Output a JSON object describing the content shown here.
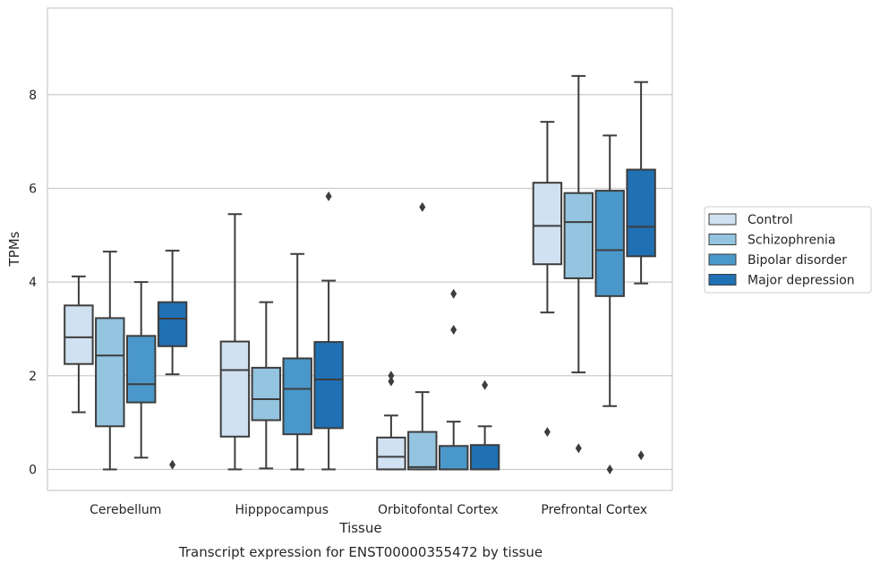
{
  "chart_data": {
    "type": "box",
    "title": "",
    "caption": "Transcript expression for ENST00000355472 by tissue",
    "xlabel": "Tissue",
    "ylabel": "TPMs",
    "ylim": [
      -0.45,
      9.85
    ],
    "yticks": [
      0,
      2,
      4,
      6,
      8
    ],
    "grid": true,
    "legend_position": "right",
    "categories": [
      "Cerebellum",
      "Hipppocampus",
      "Orbitofontal Cortex",
      "Prefrontal Cortex"
    ],
    "series": [
      {
        "name": "Control",
        "color": "#d0e1f1",
        "boxes": [
          {
            "whislo": 1.22,
            "q1": 2.25,
            "med": 2.82,
            "q3": 3.5,
            "whishi": 4.12,
            "fliers": []
          },
          {
            "whislo": 0.0,
            "q1": 0.7,
            "med": 2.12,
            "q3": 2.73,
            "whishi": 5.45,
            "fliers": []
          },
          {
            "whislo": 0.0,
            "q1": 0.0,
            "med": 0.27,
            "q3": 0.68,
            "whishi": 1.15,
            "fliers": [
              1.88,
              2.0
            ]
          },
          {
            "whislo": 3.35,
            "q1": 4.38,
            "med": 5.2,
            "q3": 6.12,
            "whishi": 7.42,
            "fliers": [
              0.8
            ]
          }
        ]
      },
      {
        "name": "Schizophrenia",
        "color": "#94c4df",
        "boxes": [
          {
            "whislo": 0.0,
            "q1": 0.92,
            "med": 2.43,
            "q3": 3.23,
            "whishi": 4.65,
            "fliers": []
          },
          {
            "whislo": 0.02,
            "q1": 1.05,
            "med": 1.5,
            "q3": 2.17,
            "whishi": 3.57,
            "fliers": []
          },
          {
            "whislo": 0.0,
            "q1": 0.0,
            "med": 0.05,
            "q3": 0.8,
            "whishi": 1.65,
            "fliers": [
              5.6
            ]
          },
          {
            "whislo": 2.07,
            "q1": 4.08,
            "med": 5.28,
            "q3": 5.9,
            "whishi": 8.4,
            "fliers": [
              0.45
            ]
          }
        ]
      },
      {
        "name": "Bipolar disorder",
        "color": "#4a98c9",
        "boxes": [
          {
            "whislo": 0.25,
            "q1": 1.43,
            "med": 1.82,
            "q3": 2.85,
            "whishi": 4.0,
            "fliers": []
          },
          {
            "whislo": 0.0,
            "q1": 0.75,
            "med": 1.72,
            "q3": 2.37,
            "whishi": 4.6,
            "fliers": []
          },
          {
            "whislo": 0.0,
            "q1": 0.0,
            "med": 0.0,
            "q3": 0.5,
            "whishi": 1.02,
            "fliers": [
              2.98,
              3.75
            ]
          },
          {
            "whislo": 1.35,
            "q1": 3.7,
            "med": 4.68,
            "q3": 5.95,
            "whishi": 7.13,
            "fliers": [
              0.0
            ]
          }
        ]
      },
      {
        "name": "Major depression",
        "color": "#2070b4",
        "boxes": [
          {
            "whislo": 2.03,
            "q1": 2.63,
            "med": 3.22,
            "q3": 3.57,
            "whishi": 4.67,
            "fliers": [
              0.1
            ]
          },
          {
            "whislo": 0.0,
            "q1": 0.88,
            "med": 1.92,
            "q3": 2.72,
            "whishi": 4.03,
            "fliers": [
              5.83
            ]
          },
          {
            "whislo": 0.0,
            "q1": 0.0,
            "med": 0.0,
            "q3": 0.52,
            "whishi": 0.92,
            "fliers": [
              1.8
            ]
          },
          {
            "whislo": 3.97,
            "q1": 4.55,
            "med": 5.18,
            "q3": 6.4,
            "whishi": 8.27,
            "fliers": [
              0.3
            ]
          }
        ]
      }
    ]
  }
}
